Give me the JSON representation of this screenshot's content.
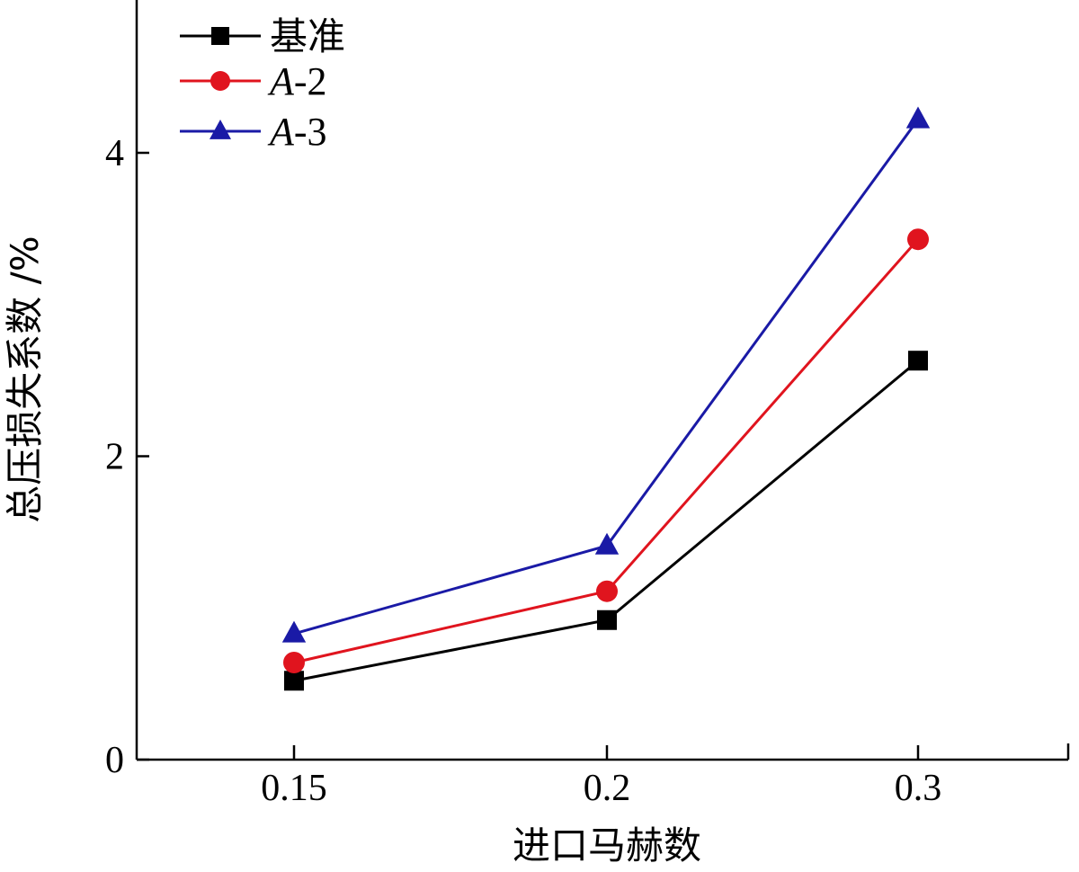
{
  "chart_data": {
    "type": "line",
    "title": "",
    "xlabel": "进口马赫数",
    "ylabel": "总压损失系数 /%",
    "categories": [
      "0.15",
      "0.2",
      "0.3"
    ],
    "ylim": [
      0,
      5
    ],
    "yticks": [
      0,
      2,
      4
    ],
    "ytick_labels": [
      "0",
      "2",
      "4"
    ],
    "legend_position": "top-left",
    "series": [
      {
        "name": "基准",
        "name_italic_prefix": "",
        "name_suffix": "基准",
        "marker": "square",
        "color": "#000000",
        "values": [
          0.52,
          0.92,
          2.63
        ]
      },
      {
        "name": "A-2",
        "name_italic_prefix": "A",
        "name_suffix": "-2",
        "marker": "circle",
        "color": "#e0141e",
        "values": [
          0.64,
          1.11,
          3.43
        ]
      },
      {
        "name": "A-3",
        "name_italic_prefix": "A",
        "name_suffix": "-3",
        "marker": "triangle",
        "color": "#1a1aa6",
        "values": [
          0.83,
          1.41,
          4.22
        ]
      }
    ]
  }
}
